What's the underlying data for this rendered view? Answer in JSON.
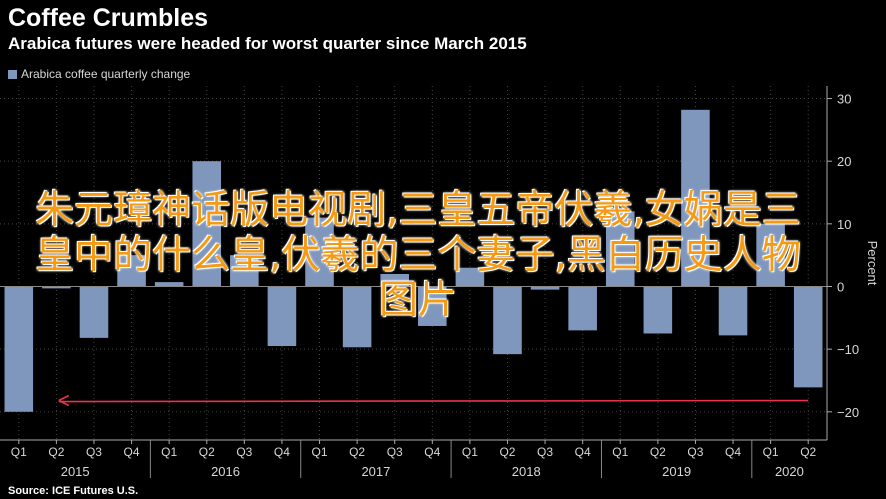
{
  "header": {
    "title": "Coffee Crumbles",
    "subtitle": "Arabica futures were headed for worst quarter since March 2015"
  },
  "legend": {
    "label": "Arabica coffee quarterly change"
  },
  "footer": {
    "source": "Source: ICE Futures U.S."
  },
  "overlay": {
    "text": "朱元璋神话版电视剧,三皇五帝伏羲,女娲是三皇中的什么皇,伏羲的三个妻子,黑白历史人物图片"
  },
  "colors": {
    "bar": "#7f97bd",
    "arrow": "#e8334a",
    "background": "#000000",
    "grid": "#444444"
  },
  "chart_data": {
    "type": "bar",
    "categories": [
      "Q1",
      "Q2",
      "Q3",
      "Q4",
      "Q1",
      "Q2",
      "Q3",
      "Q4",
      "Q1",
      "Q2",
      "Q3",
      "Q4",
      "Q1",
      "Q2",
      "Q3",
      "Q4",
      "Q1",
      "Q2",
      "Q3",
      "Q4",
      "Q1",
      "Q2"
    ],
    "year_labels": [
      "2015",
      "2016",
      "2017",
      "2018",
      "2019",
      "2020"
    ],
    "year_starts": [
      0,
      4,
      8,
      12,
      16,
      20
    ],
    "series": [
      {
        "name": "Arabica coffee quarterly change",
        "values": [
          -20,
          -0.3,
          -8.2,
          5,
          0.7,
          20,
          5,
          -9.5,
          11,
          -9.7,
          2,
          -6.3,
          3,
          -10.8,
          -0.5,
          -7,
          12,
          -7.5,
          28.2,
          -7.8,
          10,
          -16.1
        ]
      }
    ],
    "ylabel": "Percent",
    "yticks": [
      30,
      20,
      10,
      0,
      -10,
      -20
    ],
    "ylim": [
      -24.5,
      32
    ],
    "annotation": {
      "type": "arrow",
      "from_index": 21,
      "to_index": 0,
      "y": -18.2
    },
    "grid": true,
    "legend_position": "top-left"
  }
}
